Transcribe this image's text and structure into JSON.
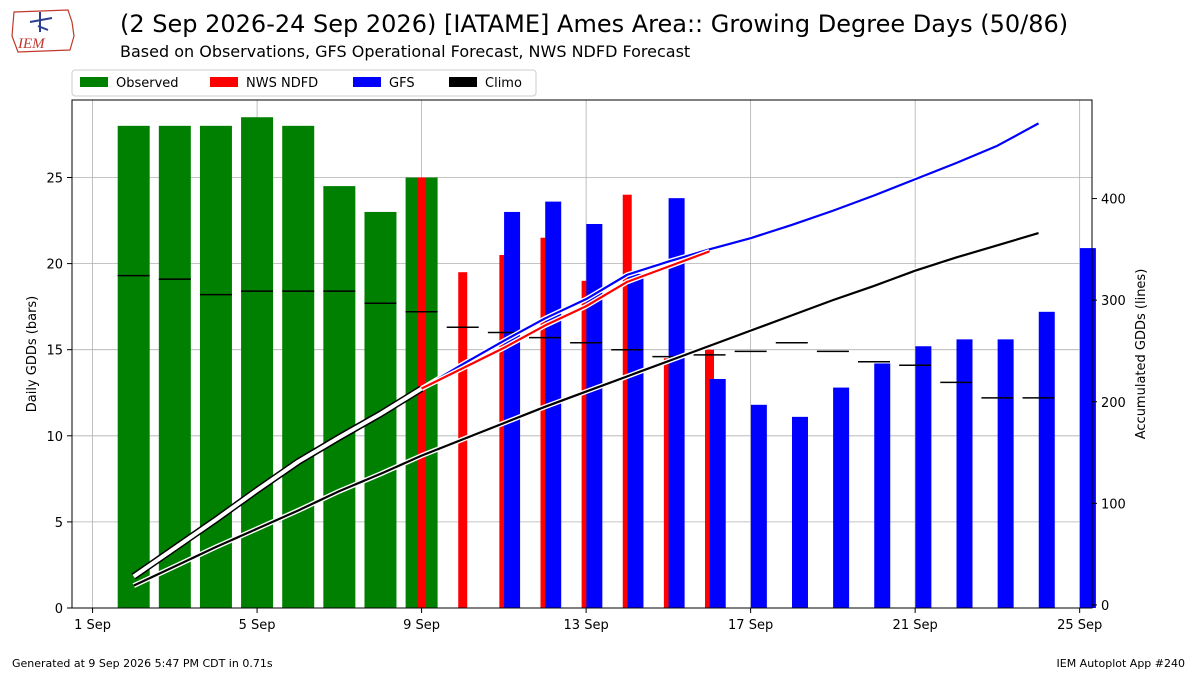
{
  "header": {
    "title": "(2 Sep 2026-24 Sep 2026) [IATAME] Ames Area:: Growing Degree Days (50/86)",
    "subtitle": "Based on Observations, GFS Operational Forecast, NWS NDFD Forecast",
    "logo_text": "IEM"
  },
  "footer": {
    "generated": "Generated at 9 Sep 2026 5:47 PM CDT in 0.71s",
    "app": "IEM Autoplot App #240"
  },
  "colors": {
    "observed": "#008000",
    "ndfd": "#ff0000",
    "gfs": "#0000ff",
    "climo": "#000000",
    "grid": "#b0b0b0",
    "logo": "#c0392b"
  },
  "chart_data": {
    "type": "bar",
    "xlabel": "",
    "ylabel": "Daily GDDs (bars)",
    "y2label": "Accumulated GDDs (lines)",
    "xlim": [
      -1.5,
      23.3
    ],
    "ylim": [
      0,
      29.5
    ],
    "y2lim": [
      -3,
      497
    ],
    "grid": true,
    "legend_position": "top-left",
    "legend": [
      {
        "key": "observed",
        "label": "Observed"
      },
      {
        "key": "ndfd",
        "label": "NWS NDFD"
      },
      {
        "key": "gfs",
        "label": "GFS"
      },
      {
        "key": "climo",
        "label": "Climo"
      }
    ],
    "x_ticks": [
      {
        "v": -1,
        "label": "1 Sep"
      },
      {
        "v": 3,
        "label": "5 Sep"
      },
      {
        "v": 7,
        "label": "9 Sep"
      },
      {
        "v": 11,
        "label": "13 Sep"
      },
      {
        "v": 15,
        "label": "17 Sep"
      },
      {
        "v": 19,
        "label": "21 Sep"
      },
      {
        "v": 23,
        "label": "25 Sep"
      }
    ],
    "y_ticks": [
      0,
      5,
      10,
      15,
      20,
      25
    ],
    "y2_ticks": [
      0,
      100,
      200,
      300,
      400
    ],
    "observed": [
      {
        "day": 0,
        "value": 28.0
      },
      {
        "day": 1,
        "value": 28.0
      },
      {
        "day": 2,
        "value": 28.0
      },
      {
        "day": 3,
        "value": 28.5
      },
      {
        "day": 4,
        "value": 28.0
      },
      {
        "day": 5,
        "value": 24.5
      },
      {
        "day": 6,
        "value": 23.0
      },
      {
        "day": 7,
        "value": 25.0
      }
    ],
    "ndfd": [
      {
        "day": 7,
        "value": 25.0
      },
      {
        "day": 8,
        "value": 19.5
      },
      {
        "day": 9,
        "value": 20.5
      },
      {
        "day": 10,
        "value": 21.5
      },
      {
        "day": 11,
        "value": 19.0
      },
      {
        "day": 12,
        "value": 24.0
      },
      {
        "day": 13,
        "value": 14.5
      },
      {
        "day": 14,
        "value": 15.0
      }
    ],
    "gfs": [
      {
        "day": 9.2,
        "value": 23.0
      },
      {
        "day": 10.2,
        "value": 23.6
      },
      {
        "day": 11.2,
        "value": 22.3
      },
      {
        "day": 12.2,
        "value": 19.4
      },
      {
        "day": 13.2,
        "value": 23.8
      },
      {
        "day": 14.2,
        "value": 13.3
      },
      {
        "day": 15.2,
        "value": 11.8
      },
      {
        "day": 16.2,
        "value": 11.1
      },
      {
        "day": 17.2,
        "value": 12.8
      },
      {
        "day": 18.2,
        "value": 14.2
      },
      {
        "day": 19.2,
        "value": 15.2
      },
      {
        "day": 20.2,
        "value": 15.6
      },
      {
        "day": 21.2,
        "value": 15.6
      },
      {
        "day": 22.2,
        "value": 17.2
      },
      {
        "day": 23.2,
        "value": 20.9
      }
    ],
    "climo_daily": [
      {
        "day": 0,
        "value": 19.3
      },
      {
        "day": 1,
        "value": 19.1
      },
      {
        "day": 2,
        "value": 18.2
      },
      {
        "day": 3,
        "value": 18.4
      },
      {
        "day": 4,
        "value": 18.4
      },
      {
        "day": 5,
        "value": 18.4
      },
      {
        "day": 6,
        "value": 17.7
      },
      {
        "day": 7,
        "value": 17.2
      },
      {
        "day": 8,
        "value": 16.3
      },
      {
        "day": 9,
        "value": 16.0
      },
      {
        "day": 10,
        "value": 15.7
      },
      {
        "day": 11,
        "value": 15.4
      },
      {
        "day": 12,
        "value": 15.0
      },
      {
        "day": 13,
        "value": 14.6
      },
      {
        "day": 14,
        "value": 14.7
      },
      {
        "day": 15,
        "value": 14.9
      },
      {
        "day": 16,
        "value": 15.4
      },
      {
        "day": 17,
        "value": 14.9
      },
      {
        "day": 18,
        "value": 14.3
      },
      {
        "day": 19,
        "value": 14.1
      },
      {
        "day": 20,
        "value": 13.1
      },
      {
        "day": 21,
        "value": 12.2
      },
      {
        "day": 22,
        "value": 12.2
      }
    ],
    "accum_observed": [
      {
        "day": 0,
        "value": 28
      },
      {
        "day": 1,
        "value": 56
      },
      {
        "day": 2,
        "value": 84
      },
      {
        "day": 3,
        "value": 113
      },
      {
        "day": 4,
        "value": 141
      },
      {
        "day": 5,
        "value": 165
      },
      {
        "day": 6,
        "value": 188
      },
      {
        "day": 7,
        "value": 213
      }
    ],
    "accum_ndfd": [
      {
        "day": 7,
        "value": 213
      },
      {
        "day": 8,
        "value": 233
      },
      {
        "day": 9,
        "value": 253
      },
      {
        "day": 10,
        "value": 275
      },
      {
        "day": 11,
        "value": 294
      },
      {
        "day": 12,
        "value": 318
      },
      {
        "day": 13,
        "value": 333
      },
      {
        "day": 14,
        "value": 348
      }
    ],
    "accum_gfs": [
      {
        "day": 7,
        "value": 213
      },
      {
        "day": 8,
        "value": 237
      },
      {
        "day": 9,
        "value": 260
      },
      {
        "day": 10,
        "value": 282
      },
      {
        "day": 11,
        "value": 301
      },
      {
        "day": 12,
        "value": 325
      },
      {
        "day": 13,
        "value": 338
      },
      {
        "day": 14,
        "value": 350
      },
      {
        "day": 15,
        "value": 361
      },
      {
        "day": 16,
        "value": 374
      },
      {
        "day": 17,
        "value": 388
      },
      {
        "day": 18,
        "value": 403
      },
      {
        "day": 19,
        "value": 419
      },
      {
        "day": 20,
        "value": 435
      },
      {
        "day": 21,
        "value": 452
      },
      {
        "day": 22,
        "value": 474
      }
    ],
    "accum_climo": [
      {
        "day": 0,
        "value": 19
      },
      {
        "day": 1,
        "value": 38
      },
      {
        "day": 2,
        "value": 57
      },
      {
        "day": 3,
        "value": 75
      },
      {
        "day": 4,
        "value": 93
      },
      {
        "day": 5,
        "value": 112
      },
      {
        "day": 6,
        "value": 129
      },
      {
        "day": 7,
        "value": 147
      },
      {
        "day": 8,
        "value": 163
      },
      {
        "day": 9,
        "value": 179
      },
      {
        "day": 10,
        "value": 195
      },
      {
        "day": 11,
        "value": 210
      },
      {
        "day": 12,
        "value": 225
      },
      {
        "day": 13,
        "value": 240
      },
      {
        "day": 14,
        "value": 255
      },
      {
        "day": 15,
        "value": 270
      },
      {
        "day": 16,
        "value": 285
      },
      {
        "day": 17,
        "value": 300
      },
      {
        "day": 18,
        "value": 314
      },
      {
        "day": 19,
        "value": 329
      },
      {
        "day": 20,
        "value": 342
      },
      {
        "day": 21,
        "value": 354
      },
      {
        "day": 22,
        "value": 366
      }
    ]
  }
}
